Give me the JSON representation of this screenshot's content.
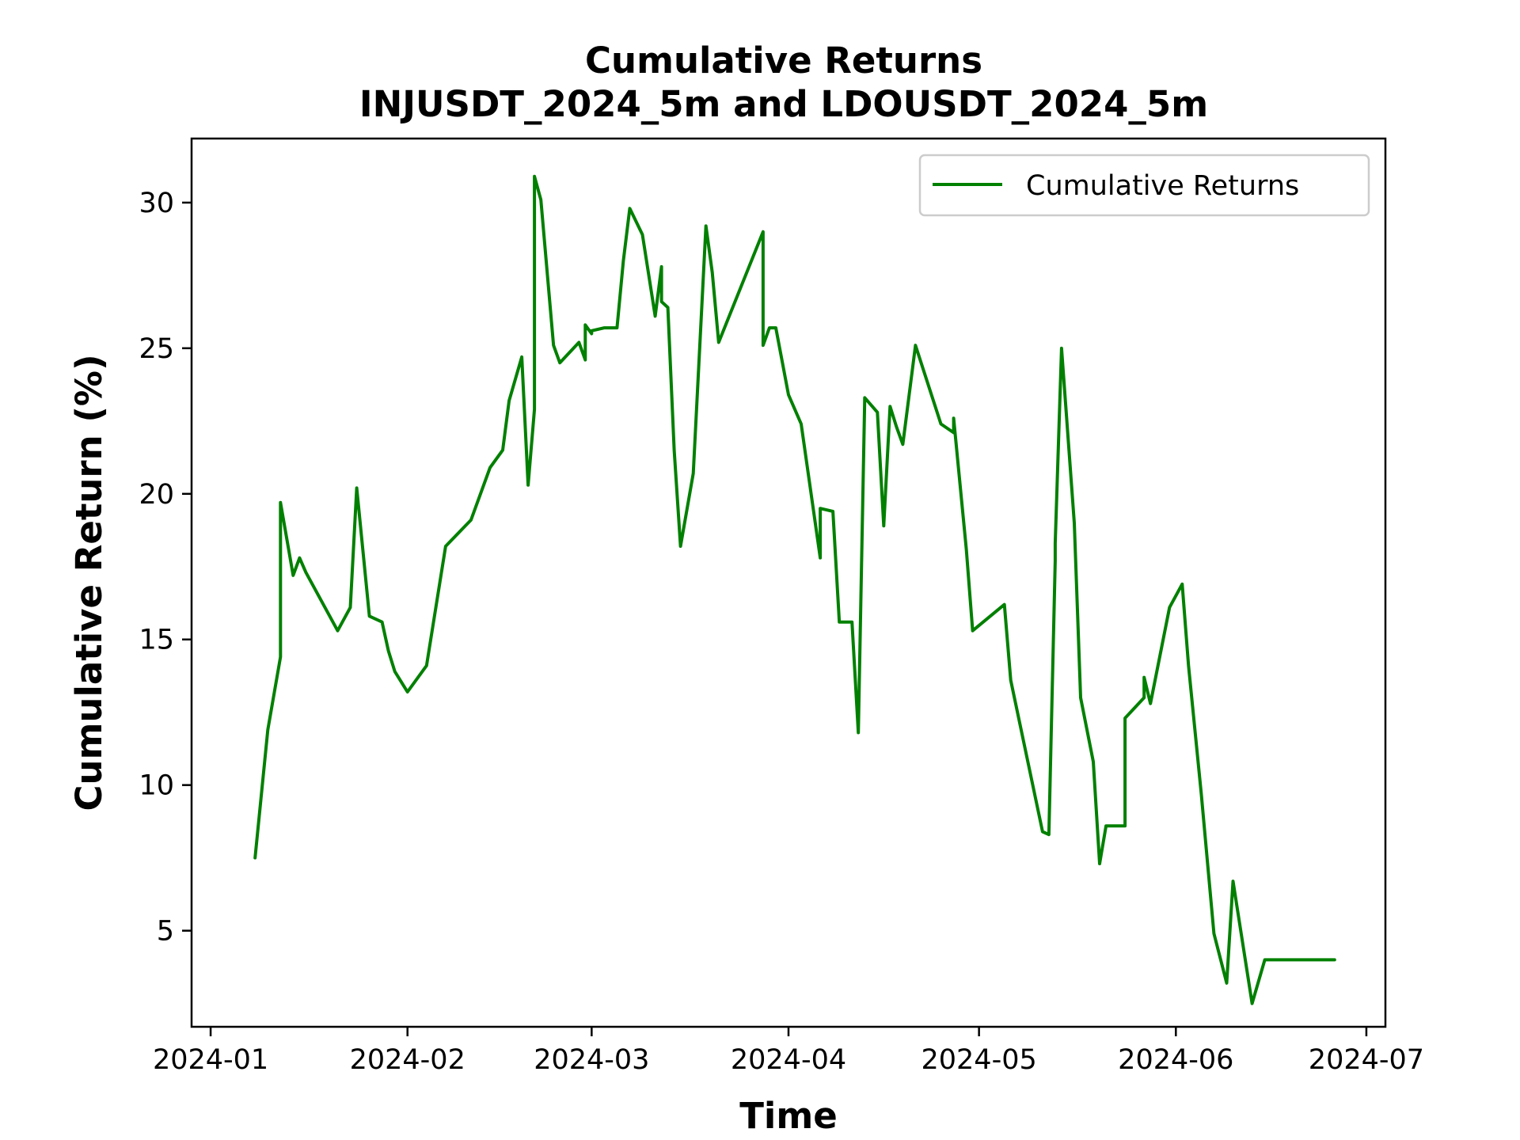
{
  "chart_data": {
    "type": "line",
    "title": "Cumulative Returns",
    "subtitle": "INJUSDT_2024_5m and LDOUSDT_2024_5m",
    "xlabel": "Time",
    "ylabel": "Cumulative Return (%)",
    "xlim": [
      "2023-12-29",
      "2024-07-04"
    ],
    "ylim": [
      1.7,
      32.2
    ],
    "x_ticks": [
      "2024-01-01",
      "2024-02-01",
      "2024-03-01",
      "2024-04-01",
      "2024-05-01",
      "2024-06-01",
      "2024-07-01"
    ],
    "x_tick_labels": [
      "2024-01",
      "2024-02",
      "2024-03",
      "2024-04",
      "2024-05",
      "2024-06",
      "2024-07"
    ],
    "y_ticks": [
      5,
      10,
      15,
      20,
      25,
      30
    ],
    "y_tick_labels": [
      "5",
      "10",
      "15",
      "20",
      "25",
      "30"
    ],
    "grid": false,
    "legend": {
      "position": "top-right",
      "entries": [
        "Cumulative Returns"
      ]
    },
    "colors": {
      "line": "#008000",
      "axes": "#000000",
      "legend_border": "#cccccc"
    },
    "series": [
      {
        "name": "Cumulative Returns",
        "x": [
          "2024-01-08",
          "2024-01-10",
          "2024-01-12",
          "2024-01-12",
          "2024-01-14",
          "2024-01-15",
          "2024-01-16",
          "2024-01-21",
          "2024-01-23",
          "2024-01-24",
          "2024-01-26",
          "2024-01-28",
          "2024-01-29",
          "2024-01-30",
          "2024-02-01",
          "2024-02-04",
          "2024-02-07",
          "2024-02-11",
          "2024-02-14",
          "2024-02-16",
          "2024-02-17",
          "2024-02-19",
          "2024-02-20",
          "2024-02-21",
          "2024-02-21",
          "2024-02-22",
          "2024-02-24",
          "2024-02-25",
          "2024-02-28",
          "2024-02-29",
          "2024-02-29",
          "2024-03-01",
          "2024-03-01",
          "2024-03-03",
          "2024-03-05",
          "2024-03-06",
          "2024-03-07",
          "2024-03-09",
          "2024-03-11",
          "2024-03-12",
          "2024-03-12",
          "2024-03-13",
          "2024-03-14",
          "2024-03-15",
          "2024-03-17",
          "2024-03-19",
          "2024-03-20",
          "2024-03-21",
          "2024-03-28",
          "2024-03-28",
          "2024-03-29",
          "2024-03-29",
          "2024-03-30",
          "2024-04-01",
          "2024-04-03",
          "2024-04-06",
          "2024-04-06",
          "2024-04-08",
          "2024-04-09",
          "2024-04-11",
          "2024-04-12",
          "2024-04-13",
          "2024-04-15",
          "2024-04-16",
          "2024-04-17",
          "2024-04-18",
          "2024-04-19",
          "2024-04-21",
          "2024-04-25",
          "2024-04-27",
          "2024-04-27",
          "2024-04-29",
          "2024-04-30",
          "2024-05-05",
          "2024-05-06",
          "2024-05-11",
          "2024-05-12",
          "2024-05-13",
          "2024-05-13",
          "2024-05-14",
          "2024-05-16",
          "2024-05-17",
          "2024-05-19",
          "2024-05-20",
          "2024-05-21",
          "2024-05-24",
          "2024-05-24",
          "2024-05-27",
          "2024-05-27",
          "2024-05-28",
          "2024-05-31",
          "2024-06-02",
          "2024-06-03",
          "2024-06-05",
          "2024-06-07",
          "2024-06-09",
          "2024-06-10",
          "2024-06-13",
          "2024-06-15",
          "2024-06-20",
          "2024-06-21",
          "2024-06-22",
          "2024-06-24",
          "2024-06-26"
        ],
        "y": [
          7.5,
          11.9,
          14.4,
          19.7,
          17.2,
          17.8,
          17.3,
          15.3,
          16.1,
          20.2,
          15.8,
          15.6,
          14.6,
          13.9,
          13.2,
          14.1,
          18.2,
          19.1,
          20.9,
          21.5,
          23.2,
          24.7,
          20.3,
          22.9,
          30.9,
          30.1,
          25.1,
          24.5,
          25.2,
          24.6,
          25.8,
          25.5,
          25.6,
          25.7,
          25.7,
          28.0,
          29.8,
          28.9,
          26.1,
          27.8,
          26.6,
          26.4,
          21.5,
          18.2,
          20.7,
          29.2,
          27.6,
          25.2,
          29.0,
          25.1,
          25.7,
          25.7,
          25.7,
          23.4,
          22.4,
          17.8,
          19.5,
          19.4,
          15.6,
          15.6,
          11.8,
          23.3,
          22.8,
          18.9,
          23.0,
          22.3,
          21.7,
          25.1,
          22.4,
          22.1,
          22.6,
          18.1,
          15.3,
          16.2,
          13.6,
          8.4,
          8.3,
          17.7,
          18.3,
          25.0,
          19.0,
          13.0,
          10.8,
          7.3,
          8.6,
          8.6,
          12.3,
          13.0,
          13.7,
          12.8,
          16.1,
          16.9,
          14.1,
          9.7,
          4.9,
          3.2,
          6.7,
          2.5,
          4.0,
          4.0,
          4.0,
          4.0,
          4.0,
          4.0
        ]
      }
    ]
  }
}
